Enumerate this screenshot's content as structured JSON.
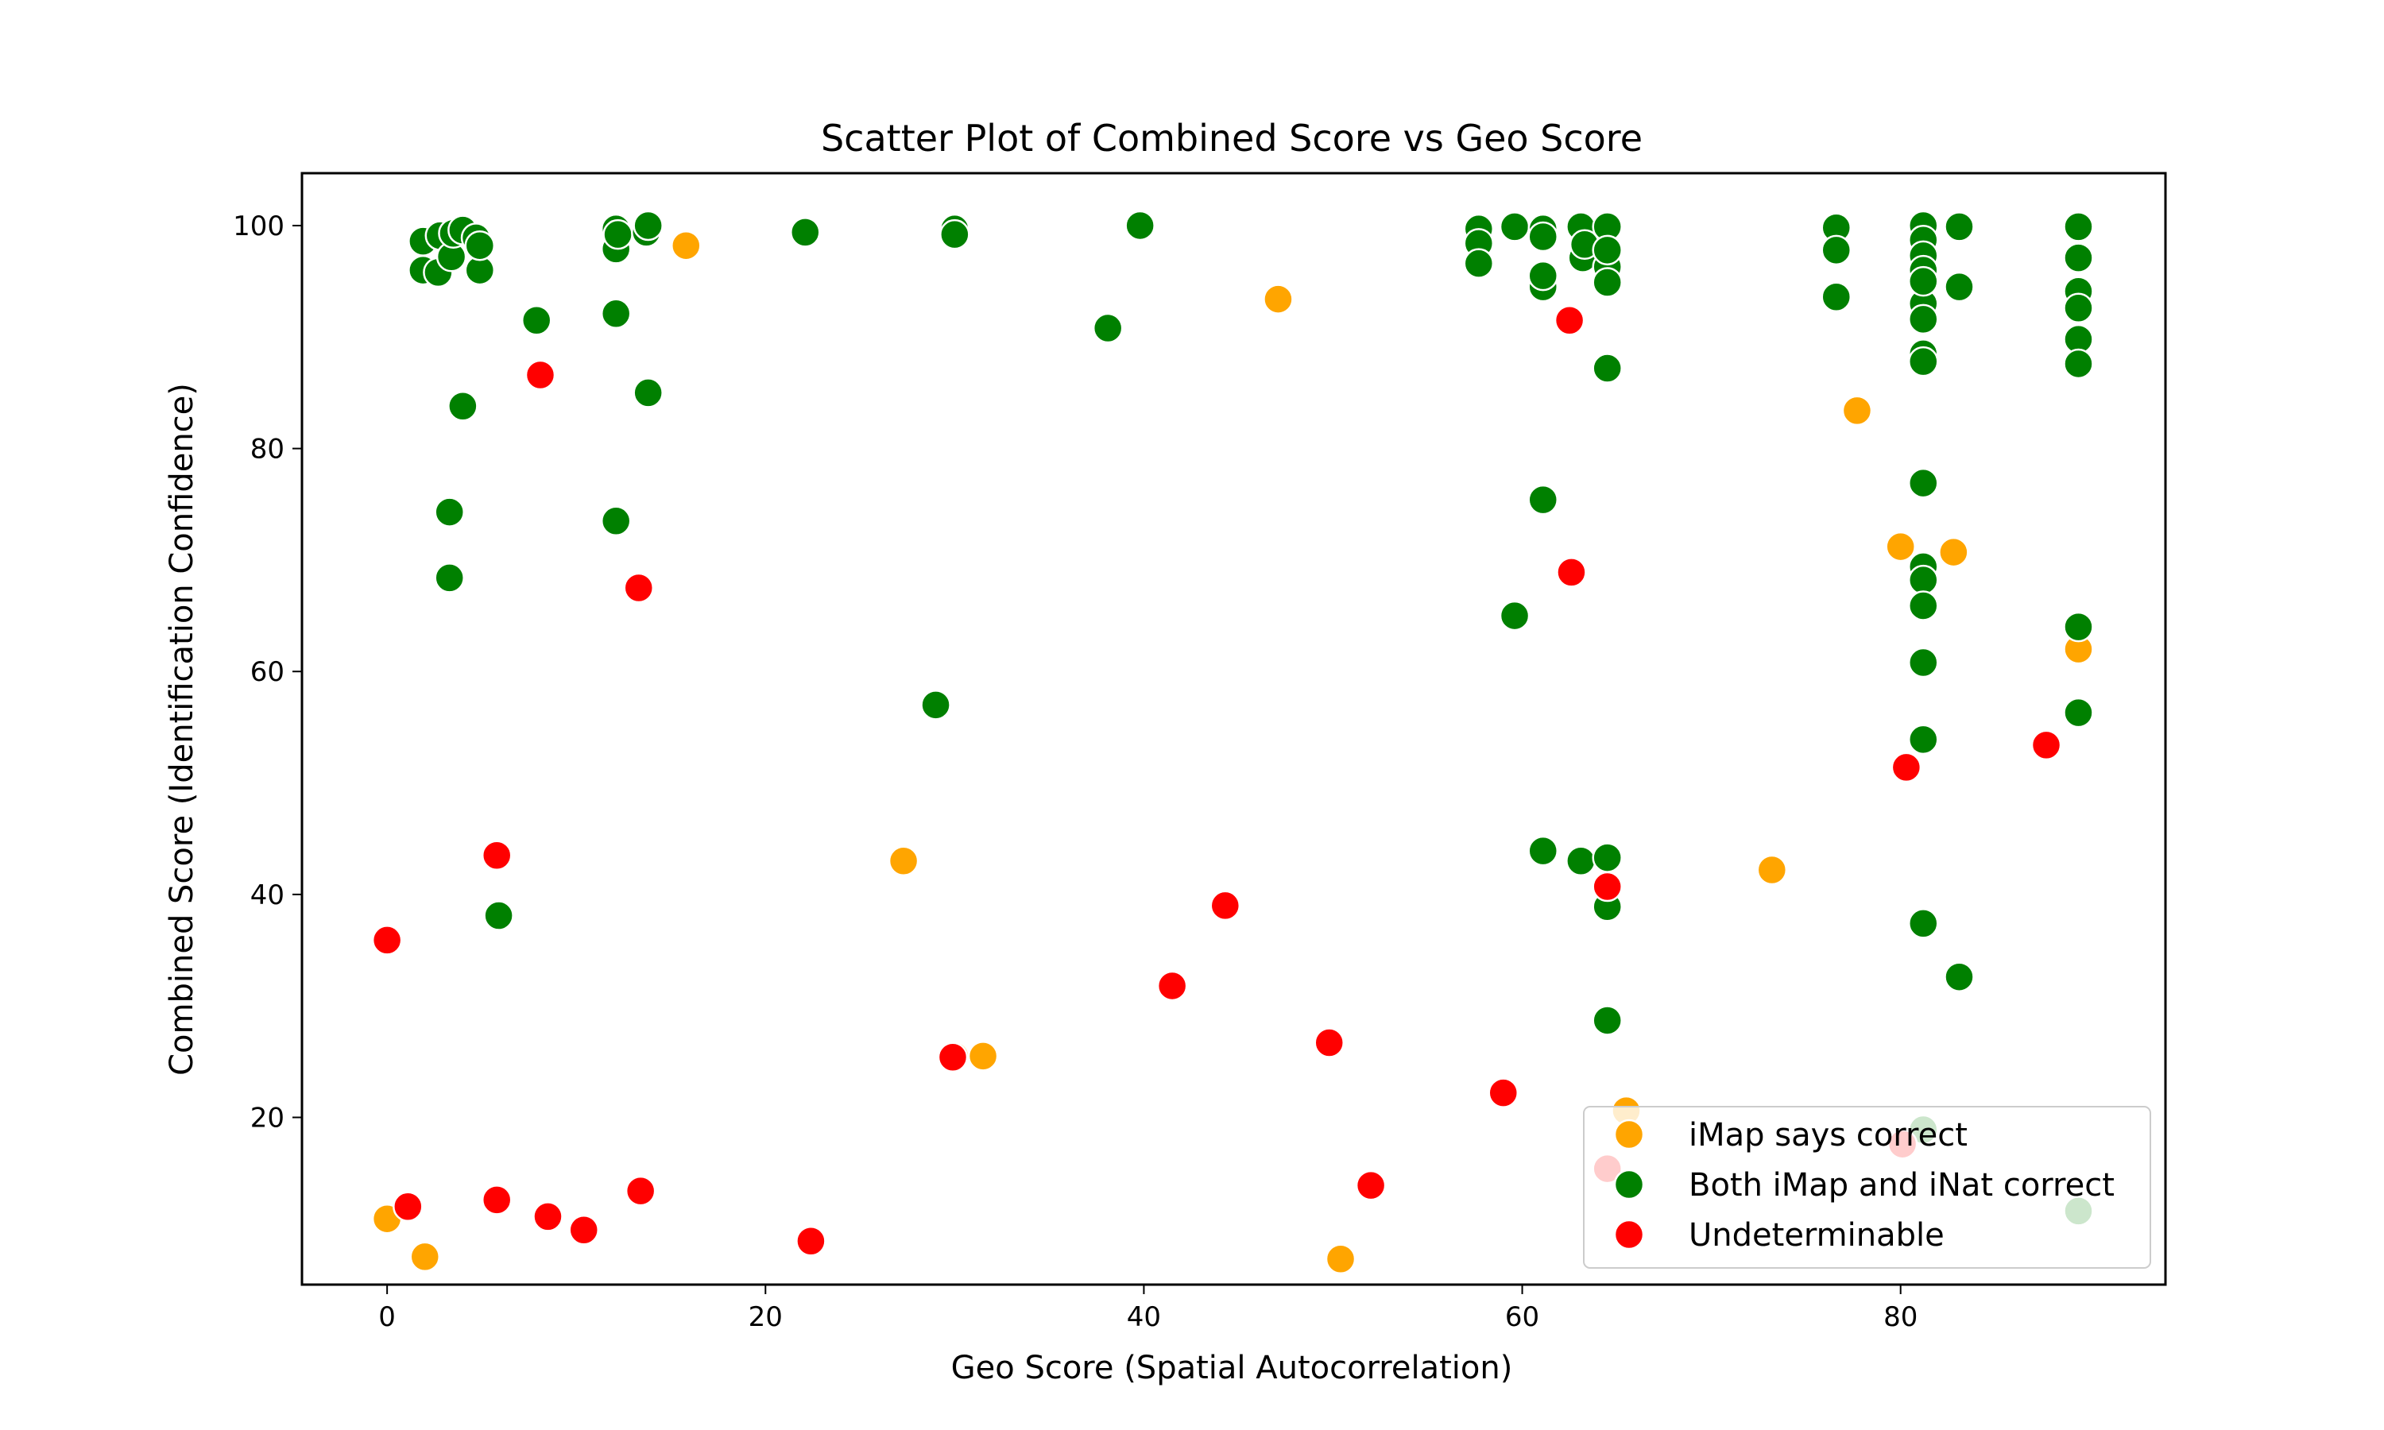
{
  "chart_data": {
    "type": "scatter",
    "title": "Scatter Plot of Combined Score vs Geo Score",
    "xlabel": "Geo Score (Spatial Autocorrelation)",
    "ylabel": "Combined Score (Identification Confidence)",
    "xlim": [
      -4.5,
      94
    ],
    "ylim": [
      5,
      104.7
    ],
    "xticks": [
      0,
      20,
      40,
      60,
      80
    ],
    "yticks": [
      20,
      40,
      60,
      80,
      100
    ],
    "grid": false,
    "legend_position": "lower right",
    "series": [
      {
        "name": "iMap says correct",
        "color": "#ffa500",
        "points": [
          [
            0,
            10.9
          ],
          [
            2,
            7.5
          ],
          [
            15.8,
            98.2
          ],
          [
            27.3,
            43
          ],
          [
            30,
            25.5
          ],
          [
            31.5,
            25.5
          ],
          [
            47.1,
            93.4
          ],
          [
            50.4,
            7.3
          ],
          [
            65.5,
            20.6
          ],
          [
            73.2,
            42.2
          ],
          [
            77.7,
            83.4
          ],
          [
            80,
            71.2
          ],
          [
            80.2,
            17.7
          ],
          [
            82.8,
            70.7
          ],
          [
            89.4,
            62
          ]
        ]
      },
      {
        "name": "Both iMap and iNat correct",
        "color": "#008000",
        "points": [
          [
            1.9,
            98.6
          ],
          [
            1.9,
            96.0
          ],
          [
            2.7,
            95.8
          ],
          [
            2.8,
            99.1
          ],
          [
            3.4,
            97.2
          ],
          [
            3.5,
            99.3
          ],
          [
            4,
            99.6
          ],
          [
            4.7,
            98.9
          ],
          [
            4.9,
            96.0
          ],
          [
            4.9,
            98.2
          ],
          [
            7.9,
            91.5
          ],
          [
            3.3,
            74.3
          ],
          [
            3.3,
            68.4
          ],
          [
            4,
            83.8
          ],
          [
            5.9,
            38.1
          ],
          [
            12.1,
            99.7
          ],
          [
            12.1,
            97.9
          ],
          [
            12.2,
            99.2
          ],
          [
            12.1,
            92.1
          ],
          [
            12.1,
            73.5
          ],
          [
            13.7,
            99.4
          ],
          [
            13.8,
            100
          ],
          [
            13.8,
            85
          ],
          [
            22.1,
            99.4
          ],
          [
            30,
            99.7
          ],
          [
            30,
            99.2
          ],
          [
            29,
            57
          ],
          [
            38.1,
            90.8
          ],
          [
            39.8,
            100
          ],
          [
            57.7,
            99.7
          ],
          [
            57.7,
            98.4
          ],
          [
            57.7,
            96.6
          ],
          [
            59.6,
            99.9
          ],
          [
            61.1,
            99.7
          ],
          [
            61.1,
            99.0
          ],
          [
            61.1,
            94.5
          ],
          [
            61.1,
            95.5
          ],
          [
            63.1,
            99.9
          ],
          [
            63.2,
            97.1
          ],
          [
            63.3,
            98.3
          ],
          [
            64.5,
            99.9
          ],
          [
            64.5,
            96.3
          ],
          [
            64.5,
            94.9
          ],
          [
            64.5,
            97.8
          ],
          [
            64.5,
            87.2
          ],
          [
            61.1,
            75.4
          ],
          [
            59.6,
            65
          ],
          [
            61.1,
            43.9
          ],
          [
            63.1,
            43
          ],
          [
            64.5,
            43.3
          ],
          [
            64.5,
            38.9
          ],
          [
            64.5,
            28.7
          ],
          [
            76.6,
            99.8
          ],
          [
            76.6,
            97.8
          ],
          [
            76.6,
            93.6
          ],
          [
            81.2,
            100
          ],
          [
            81.2,
            98.7
          ],
          [
            81.2,
            97.3
          ],
          [
            81.2,
            96.0
          ],
          [
            81.2,
            93.0
          ],
          [
            81.2,
            91.6
          ],
          [
            81.2,
            95
          ],
          [
            81.2,
            88.5
          ],
          [
            81.2,
            87.8
          ],
          [
            83.1,
            99.9
          ],
          [
            83.1,
            94.5
          ],
          [
            81.2,
            76.9
          ],
          [
            81.2,
            69.4
          ],
          [
            81.2,
            68.2
          ],
          [
            81.2,
            65.9
          ],
          [
            81.2,
            60.8
          ],
          [
            81.2,
            53.9
          ],
          [
            81.2,
            37.4
          ],
          [
            83.1,
            32.6
          ],
          [
            81.2,
            18.9
          ],
          [
            89.4,
            99.9
          ],
          [
            89.4,
            97.1
          ],
          [
            89.4,
            94.1
          ],
          [
            89.4,
            92.6
          ],
          [
            89.4,
            89.8
          ],
          [
            89.4,
            87.6
          ],
          [
            89.4,
            64
          ],
          [
            89.4,
            56.3
          ],
          [
            89.4,
            11.6
          ]
        ]
      },
      {
        "name": "Undeterminable",
        "color": "#ff0000",
        "points": [
          [
            0,
            35.9
          ],
          [
            1.1,
            12
          ],
          [
            5.8,
            43.5
          ],
          [
            5.8,
            12.6
          ],
          [
            8.1,
            86.6
          ],
          [
            8.5,
            11.1
          ],
          [
            10.4,
            9.9
          ],
          [
            13.3,
            67.5
          ],
          [
            13.4,
            13.4
          ],
          [
            22.4,
            8.9
          ],
          [
            29.9,
            25.4
          ],
          [
            41.5,
            31.8
          ],
          [
            44.3,
            39
          ],
          [
            49.8,
            26.7
          ],
          [
            52,
            13.9
          ],
          [
            59,
            22.2
          ],
          [
            62.5,
            91.5
          ],
          [
            62.6,
            68.9
          ],
          [
            64.5,
            40.7
          ],
          [
            64.5,
            15.4
          ],
          [
            80.1,
            17.6
          ],
          [
            80.3,
            51.4
          ],
          [
            87.7,
            53.4
          ]
        ]
      }
    ]
  }
}
